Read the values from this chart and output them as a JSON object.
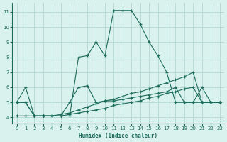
{
  "x": [
    0,
    1,
    2,
    3,
    4,
    5,
    6,
    7,
    8,
    9,
    10,
    11,
    12,
    13,
    14,
    15,
    16,
    17,
    18,
    19,
    20,
    21,
    22,
    23
  ],
  "series1": [
    5.0,
    6.0,
    4.1,
    4.1,
    4.1,
    4.1,
    4.1,
    8.0,
    8.1,
    9.0,
    8.1,
    11.1,
    11.1,
    11.1,
    10.2,
    9.0,
    8.1,
    7.0,
    5.0,
    5.0,
    5.0,
    5.0,
    5.0,
    5.0
  ],
  "series2": [
    5.0,
    5.0,
    4.1,
    4.1,
    4.1,
    4.1,
    5.0,
    6.0,
    6.1,
    5.0,
    5.1,
    5.1,
    5.2,
    5.3,
    5.4,
    5.5,
    5.6,
    5.7,
    6.0,
    5.0,
    5.0,
    6.0,
    5.0,
    5.0
  ],
  "series3": [
    5.0,
    5.0,
    4.1,
    4.1,
    4.1,
    4.2,
    4.3,
    4.5,
    4.7,
    4.9,
    5.1,
    5.2,
    5.4,
    5.6,
    5.7,
    5.9,
    6.1,
    6.3,
    6.5,
    6.7,
    7.0,
    5.0,
    5.0,
    5.0
  ],
  "series4": [
    4.1,
    4.1,
    4.1,
    4.1,
    4.1,
    4.1,
    4.2,
    4.3,
    4.4,
    4.5,
    4.6,
    4.8,
    4.9,
    5.0,
    5.1,
    5.3,
    5.4,
    5.6,
    5.7,
    5.9,
    6.0,
    5.0,
    5.0,
    5.0
  ],
  "color": "#1a6b5a",
  "bg_color": "#daf2ee",
  "grid_color": "#b8dcd8",
  "xlabel": "Humidex (Indice chaleur)",
  "ylim": [
    3.6,
    11.6
  ],
  "xlim": [
    -0.5,
    23.5
  ],
  "yticks": [
    4,
    5,
    6,
    7,
    8,
    9,
    10,
    11
  ],
  "xticks": [
    0,
    1,
    2,
    3,
    4,
    5,
    6,
    7,
    8,
    9,
    10,
    11,
    12,
    13,
    14,
    15,
    16,
    17,
    18,
    19,
    20,
    21,
    22,
    23
  ]
}
